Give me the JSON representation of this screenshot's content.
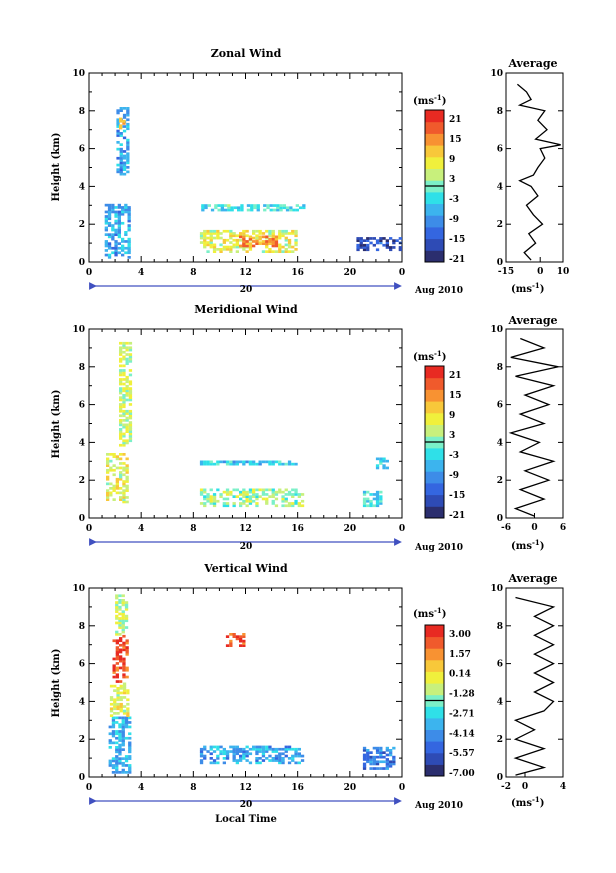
{
  "palette": [
    "#2b2e6e",
    "#2e4bb5",
    "#3466e0",
    "#3d8ce8",
    "#3cb4ee",
    "#2fe0e8",
    "#7bf0c8",
    "#c8f07c",
    "#f0f03c",
    "#f8c83a",
    "#f89232",
    "#f05a2c",
    "#e82a22"
  ],
  "common": {
    "xlabel": "Local Time",
    "xticks": [
      "0",
      "4",
      "8",
      "12",
      "16",
      "20",
      "0"
    ],
    "ylabel": "Height (km)",
    "yticks": [
      "0",
      "2",
      "4",
      "6",
      "8",
      "10"
    ],
    "date_label": "20",
    "month_label": "Aug 2010",
    "cbar_unit": "(ms",
    "cbar_unit_exp": "-1",
    "cbar_unit_close": ")",
    "avg_title": "Average",
    "avg_unit": "(ms",
    "avg_unit_exp": "-1",
    "avg_unit_close": ")"
  },
  "chart_data": [
    {
      "type": "heatmap",
      "title": "Zonal Wind",
      "xlabel": "",
      "ylabel": "Height (km)",
      "xlim": [
        0,
        24
      ],
      "ylim": [
        0,
        10
      ],
      "colorbar_ticks": [
        "21",
        "15",
        "9",
        "3",
        "-3",
        "-9",
        "-15",
        "-21"
      ],
      "colorbar_range": [
        -24,
        24
      ],
      "regions": [
        {
          "x": [
            1.2,
            3.0
          ],
          "y": [
            0.2,
            3.0
          ],
          "v": -9
        },
        {
          "x": [
            2.1,
            3.1
          ],
          "y": [
            4.6,
            8.2
          ],
          "v": -9
        },
        {
          "x": [
            2.3,
            2.8
          ],
          "y": [
            6.8,
            7.6
          ],
          "v": 12
        },
        {
          "x": [
            8.5,
            16.0
          ],
          "y": [
            0.5,
            1.6
          ],
          "v": 6
        },
        {
          "x": [
            11.5,
            14.5
          ],
          "y": [
            0.8,
            1.4
          ],
          "v": 15
        },
        {
          "x": [
            8.6,
            16.5
          ],
          "y": [
            2.7,
            2.95
          ],
          "v": -3
        },
        {
          "x": [
            20.5,
            24.0
          ],
          "y": [
            0.6,
            1.3
          ],
          "v": -18
        }
      ],
      "average": {
        "xlim": [
          -15,
          10
        ],
        "xticks": [
          "-15",
          "0",
          "10"
        ],
        "h": [
          0.1,
          0.5,
          1,
          1.5,
          2,
          2.5,
          3,
          3.5,
          4,
          4.3,
          4.6,
          5,
          5.5,
          6,
          6.2,
          6.5,
          7,
          7.5,
          8,
          8.3,
          8.6,
          9,
          9.4
        ],
        "v": [
          -4,
          -7,
          -2,
          -5,
          1,
          -3,
          -6,
          -1,
          -4,
          -9,
          -3,
          -1,
          2,
          0,
          9,
          -2,
          3,
          -1,
          2,
          -9,
          -4,
          -6,
          -10
        ]
      }
    },
    {
      "type": "heatmap",
      "title": "Meridional Wind",
      "xlabel": "",
      "ylabel": "Height (km)",
      "xlim": [
        0,
        24
      ],
      "ylim": [
        0,
        10
      ],
      "colorbar_ticks": [
        "21",
        "15",
        "9",
        "3",
        "-3",
        "-9",
        "-15",
        "-21"
      ],
      "colorbar_range": [
        -24,
        24
      ],
      "regions": [
        {
          "x": [
            1.3,
            3.0
          ],
          "y": [
            0.8,
            3.4
          ],
          "v": 6
        },
        {
          "x": [
            2.3,
            3.2
          ],
          "y": [
            3.8,
            9.3
          ],
          "v": 4
        },
        {
          "x": [
            8.5,
            16.5
          ],
          "y": [
            0.6,
            1.5
          ],
          "v": 2
        },
        {
          "x": [
            8.5,
            16.0
          ],
          "y": [
            2.8,
            3.0
          ],
          "v": -5
        },
        {
          "x": [
            21.0,
            22.5
          ],
          "y": [
            0.6,
            1.4
          ],
          "v": -3
        },
        {
          "x": [
            22.0,
            23.0
          ],
          "y": [
            2.6,
            3.2
          ],
          "v": -6
        }
      ],
      "average": {
        "xlim": [
          -6,
          6
        ],
        "xticks": [
          "-6",
          "0",
          "6"
        ],
        "h": [
          0.1,
          0.5,
          1,
          1.5,
          2,
          2.5,
          3,
          3.5,
          4,
          4.5,
          5,
          5.5,
          6,
          6.5,
          7,
          7.5,
          8,
          8.5,
          9,
          9.5
        ],
        "v": [
          0,
          -4,
          2,
          -3,
          3,
          -2,
          4,
          -3,
          1,
          -5,
          2,
          -3,
          3,
          -2,
          4,
          -4,
          5,
          -5,
          2,
          -3
        ]
      }
    },
    {
      "type": "heatmap",
      "title": "Vertical Wind",
      "xlabel": "Local Time",
      "ylabel": "Height (km)",
      "xlim": [
        0,
        24
      ],
      "ylim": [
        0,
        10
      ],
      "colorbar_ticks": [
        "3.00",
        "1.57",
        "0.14",
        "-1.28",
        "-2.71",
        "-4.14",
        "-5.57",
        "-7.00"
      ],
      "colorbar_range": [
        -7.7,
        3.7
      ],
      "regions": [
        {
          "x": [
            1.5,
            3.1
          ],
          "y": [
            0.2,
            3.2
          ],
          "v": -3.8
        },
        {
          "x": [
            1.6,
            3.1
          ],
          "y": [
            3.2,
            5.0
          ],
          "v": -0.4
        },
        {
          "x": [
            1.8,
            3.0
          ],
          "y": [
            5.0,
            7.5
          ],
          "v": 2.8
        },
        {
          "x": [
            2.0,
            3.0
          ],
          "y": [
            7.5,
            9.6
          ],
          "v": -1.0
        },
        {
          "x": [
            8.5,
            16.5
          ],
          "y": [
            0.7,
            1.6
          ],
          "v": -4.2
        },
        {
          "x": [
            10.5,
            12.0
          ],
          "y": [
            6.9,
            7.6
          ],
          "v": 2.4
        },
        {
          "x": [
            21.0,
            23.5
          ],
          "y": [
            0.4,
            1.5
          ],
          "v": -4.8
        }
      ],
      "average": {
        "xlim": [
          -2,
          4
        ],
        "xticks": [
          "-2",
          "0",
          "4"
        ],
        "h": [
          0.1,
          0.5,
          1,
          1.5,
          2,
          2.5,
          3,
          3.5,
          4,
          4.5,
          5,
          5.5,
          6,
          6.5,
          7,
          7.5,
          8,
          8.5,
          9,
          9.5
        ],
        "v": [
          -1,
          2,
          -1,
          2,
          -1,
          1,
          -1,
          2,
          3,
          1,
          3,
          1,
          3,
          1,
          3,
          1,
          3,
          1,
          3,
          -1
        ]
      }
    }
  ]
}
